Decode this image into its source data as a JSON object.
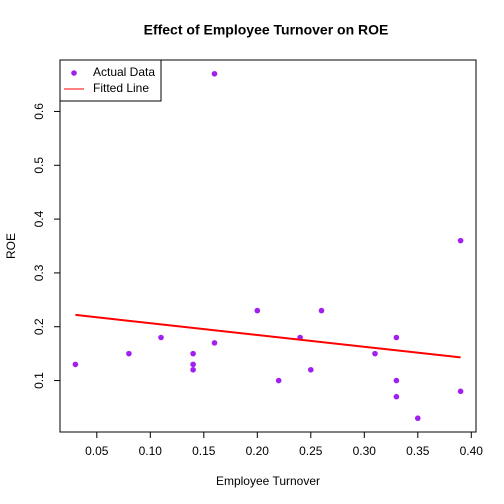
{
  "chart_data": {
    "type": "scatter",
    "title": "Effect of Employee Turnover on ROE",
    "x_label": "Employee Turnover",
    "y_label": "ROE",
    "xlim": [
      0.0156,
      0.4044
    ],
    "ylim": [
      0.0044,
      0.6956
    ],
    "xticks": [
      0.05,
      {
        "value": 0.1,
        "label": "0.10"
      },
      0.15,
      {
        "value": 0.2,
        "label": "0.20"
      },
      0.25,
      {
        "value": 0.3,
        "label": "0.30"
      },
      0.35,
      {
        "value": 0.4,
        "label": "0.40"
      }
    ],
    "yticks": [
      0.1,
      0.2,
      0.3,
      0.4,
      0.5,
      0.6
    ],
    "legend_position": "topleft",
    "series": [
      {
        "name": "Actual Data",
        "type": "scatter",
        "color": "#a020f0",
        "x": [
          0.03,
          0.08,
          0.11,
          0.14,
          0.14,
          0.14,
          0.16,
          0.16,
          0.2,
          0.22,
          0.24,
          0.25,
          0.26,
          0.31,
          0.33,
          0.33,
          0.33,
          0.35,
          0.39,
          0.39
        ],
        "values": [
          0.13,
          0.15,
          0.18,
          0.15,
          0.13,
          0.12,
          0.67,
          0.17,
          0.23,
          0.1,
          0.18,
          0.12,
          0.23,
          0.15,
          0.18,
          0.1,
          0.07,
          0.03,
          0.36,
          0.08
        ]
      },
      {
        "name": "Fitted Line",
        "type": "line",
        "color": "#ff0000",
        "x": [
          0.03,
          0.39
        ],
        "values": [
          0.222,
          0.143
        ]
      }
    ]
  }
}
